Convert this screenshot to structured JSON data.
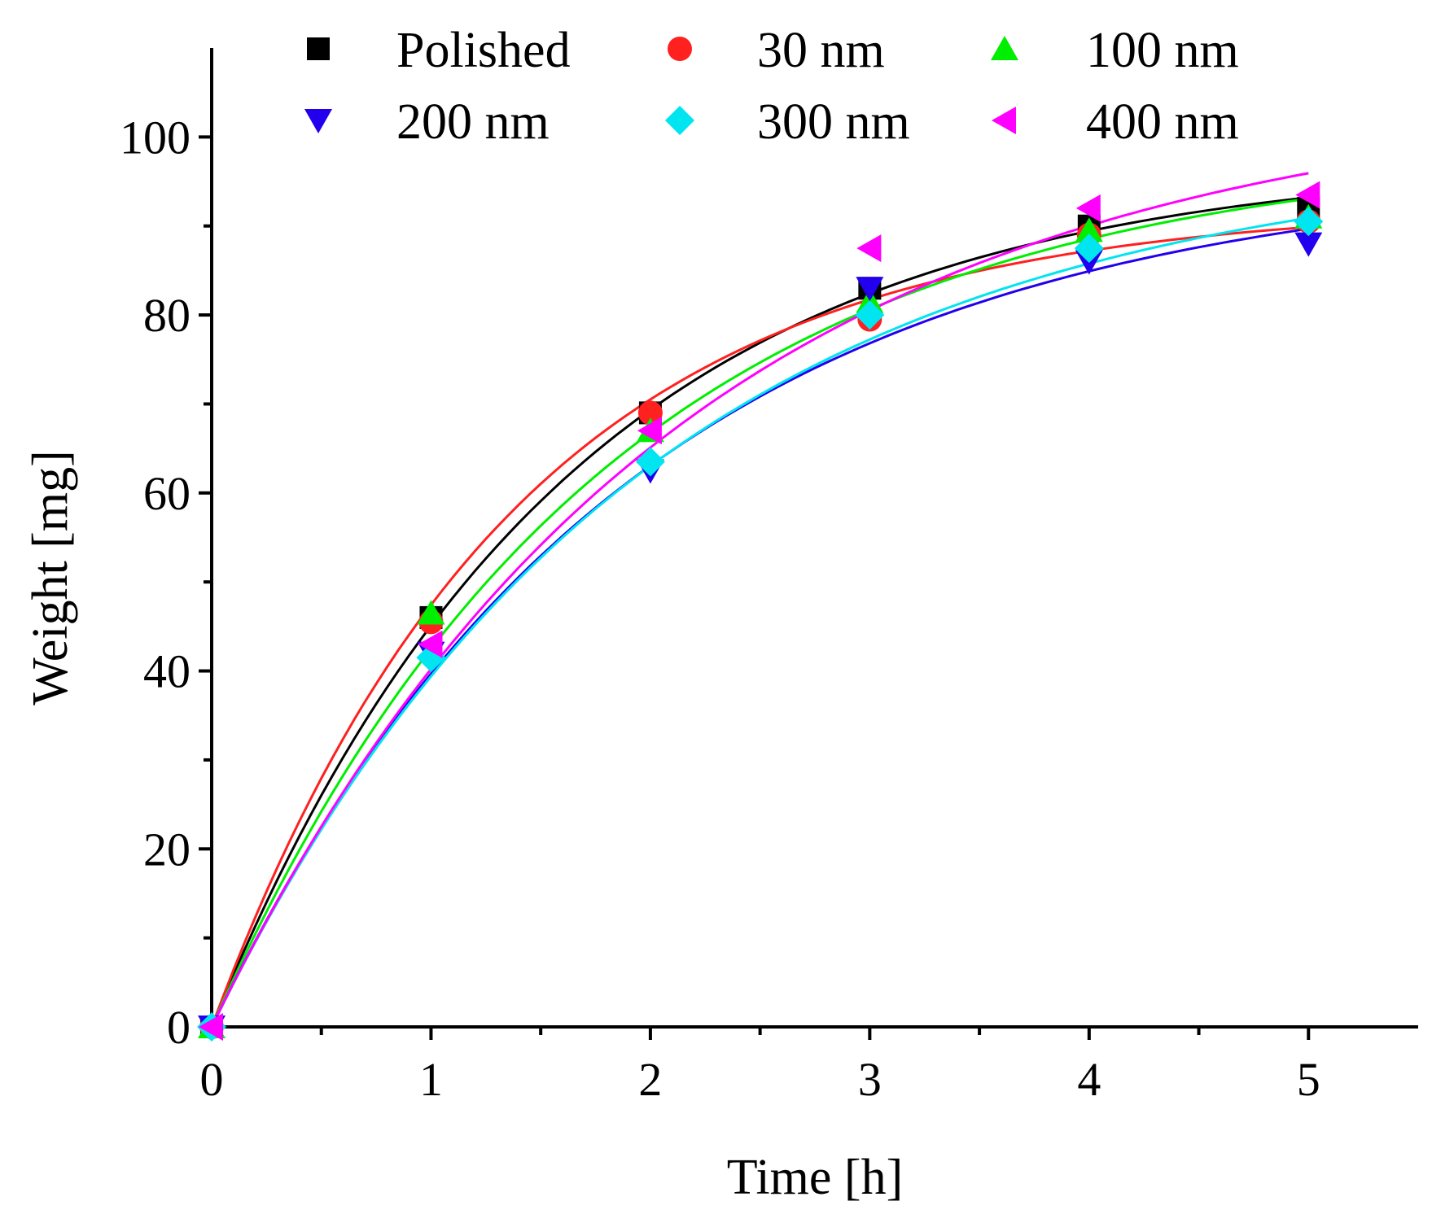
{
  "chart_data": {
    "type": "scatter",
    "title": "",
    "xlabel": "Time [h]",
    "ylabel": "Weight [mg]",
    "xlim": [
      0,
      5.5
    ],
    "ylim": [
      0,
      110
    ],
    "x_ticks": [
      "0",
      "1",
      "2",
      "3",
      "4",
      "5"
    ],
    "x_tick_values": [
      0,
      1,
      2,
      3,
      4,
      5
    ],
    "y_ticks": [
      "0",
      "20",
      "40",
      "60",
      "80",
      "100"
    ],
    "y_tick_values": [
      0,
      20,
      40,
      60,
      80,
      100
    ],
    "legend_position": "top",
    "x": [
      0,
      1,
      2,
      3,
      4,
      5
    ],
    "series": [
      {
        "name": "Polished",
        "color": "#000000",
        "marker": "square",
        "values": [
          0,
          46.0,
          69.0,
          83.0,
          90.0,
          92.0
        ],
        "fit": {
          "A": 97.6,
          "k": 0.62
        }
      },
      {
        "name": "30 nm",
        "color": "#ff2020",
        "marker": "circle",
        "values": [
          0,
          45.5,
          69.0,
          79.5,
          89.0,
          90.5
        ],
        "fit": {
          "A": 92.4,
          "k": 0.72
        }
      },
      {
        "name": "100 nm",
        "color": "#00ee00",
        "marker": "triangle-up",
        "values": [
          0,
          46.5,
          67.0,
          81.5,
          89.5,
          91.0
        ],
        "fit": {
          "A": 99.1,
          "k": 0.56
        }
      },
      {
        "name": "200 nm",
        "color": "#2200ee",
        "marker": "triangle-down",
        "values": [
          0,
          42.0,
          62.5,
          83.0,
          86.0,
          88.0
        ],
        "fit": {
          "A": 96.5,
          "k": 0.53
        }
      },
      {
        "name": "300 nm",
        "color": "#00e5f0",
        "marker": "diamond",
        "values": [
          0,
          41.5,
          63.5,
          80.0,
          87.5,
          90.5
        ],
        "fit": {
          "A": 98.6,
          "k": 0.51
        }
      },
      {
        "name": "400 nm",
        "color": "#ff00ff",
        "marker": "triangle-left",
        "values": [
          0,
          43.0,
          67.0,
          87.5,
          92.0,
          93.5
        ],
        "fit": {
          "A": 105.5,
          "k": 0.48
        }
      }
    ]
  }
}
